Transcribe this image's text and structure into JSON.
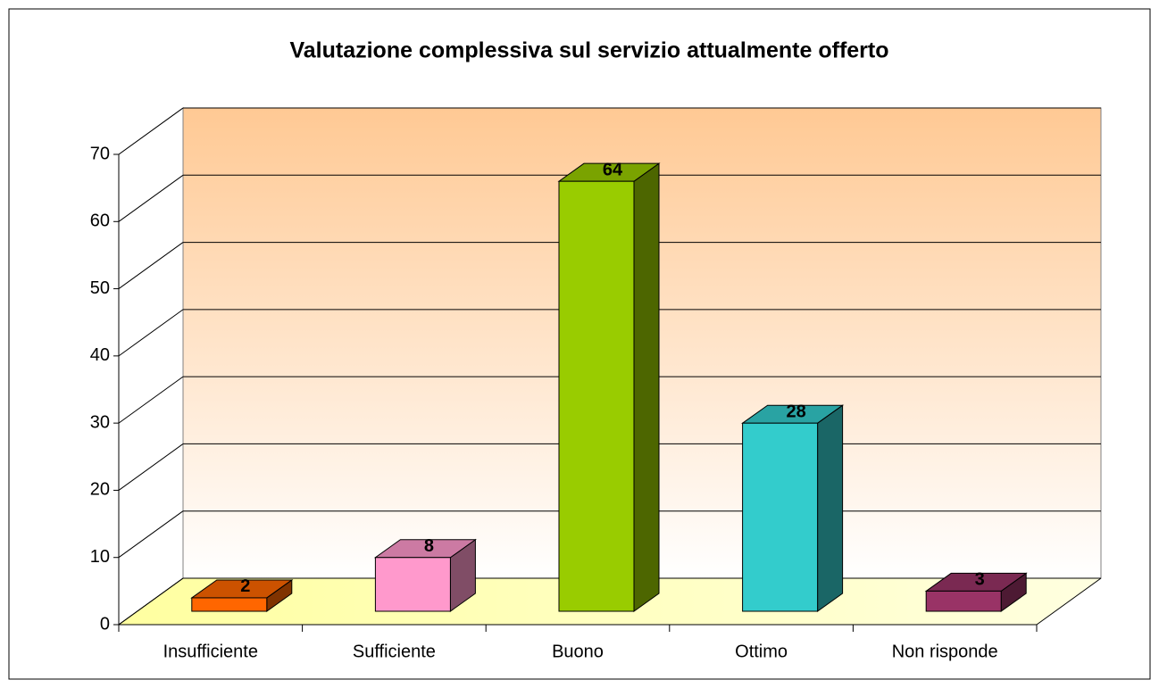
{
  "chart_data": {
    "type": "bar3d",
    "title": "Valutazione complessiva sul servizio attualmente offerto",
    "categories": [
      "Insufficiente",
      "Sufficiente",
      "Buono",
      "Ottimo",
      "Non risponde"
    ],
    "values": [
      2,
      8,
      64,
      28,
      3
    ],
    "colors": [
      "#ff6600",
      "#ff99cc",
      "#99cc00",
      "#33cccc",
      "#993366"
    ],
    "ylim": [
      0,
      70
    ],
    "yticks": [
      0,
      10,
      20,
      30,
      40,
      50,
      60,
      70
    ],
    "grid": true
  }
}
